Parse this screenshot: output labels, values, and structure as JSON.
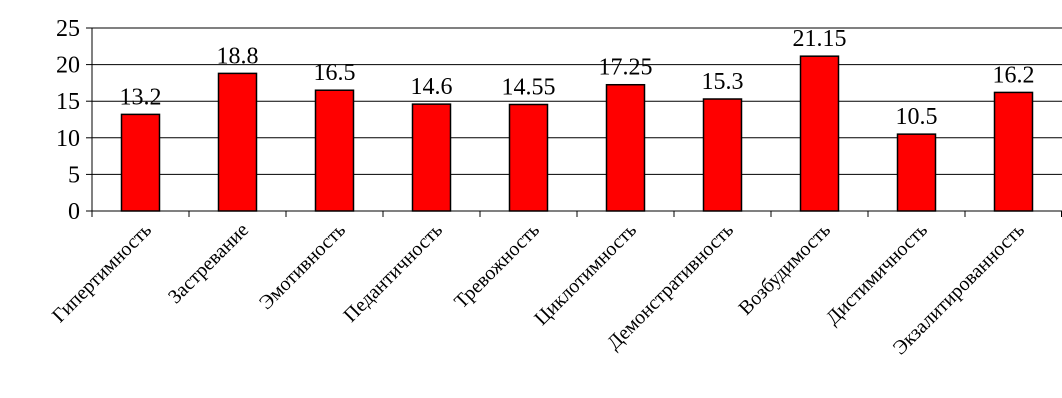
{
  "chart_data": {
    "type": "bar",
    "categories": [
      "Гипертимность",
      "Застревание",
      "Эмотивность",
      "Педантичность",
      "Тревожность",
      "Циклотимность",
      "Демонстративность",
      "Возбудимость",
      "Дистимичность",
      "Экзалитированность"
    ],
    "values": [
      13.2,
      18.8,
      16.5,
      14.6,
      14.55,
      17.25,
      15.3,
      21.15,
      10.5,
      16.2
    ],
    "value_labels": [
      "13.2",
      "18.8",
      "16.5",
      "14.6",
      "14.55",
      "17.25",
      "15.3",
      "21.15",
      "10.5",
      "16.2"
    ],
    "ylim": [
      0,
      25
    ],
    "yticks": [
      0,
      5,
      10,
      15,
      20,
      25
    ],
    "ytick_labels": [
      "0",
      "5",
      "10",
      "15",
      "20",
      "25"
    ],
    "title": "",
    "xlabel": "",
    "ylabel": "",
    "grid": "horizontal",
    "legend": "none",
    "colors": {
      "bar_fill": "#ff0000",
      "bar_stroke": "#000000",
      "grid": "#000000",
      "axis": "#000000"
    }
  }
}
